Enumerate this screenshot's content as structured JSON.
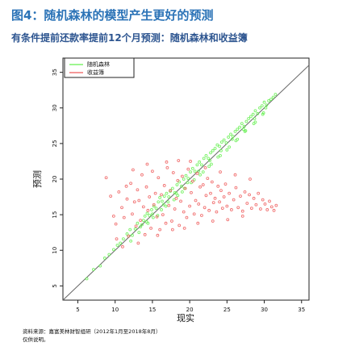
{
  "page": {
    "title": "图4：随机森林的模型产生更好的预测",
    "subtitle": "有条件提前还款率提前12个月预测：随机森林和收益簿",
    "source": "资料来源：嘉富美林财智组研（2012年1月至2018年8月）",
    "note": "仅供说明。"
  },
  "chart_data": {
    "type": "scatter",
    "title": "",
    "xlabel": "现实",
    "ylabel": "预测",
    "xlim": [
      3,
      36
    ],
    "ylim": [
      3,
      37
    ],
    "x_ticks": [
      5,
      10,
      15,
      20,
      25,
      30,
      35
    ],
    "y_ticks": [
      5,
      10,
      15,
      20,
      25,
      30,
      35
    ],
    "grid": false,
    "legend_position": "top-left",
    "reference_line": {
      "type": "y=x",
      "color": "#666666"
    },
    "series": [
      {
        "name": "随机森林",
        "color": "#63f04d",
        "points": [
          [
            6.2,
            6.0
          ],
          [
            7.1,
            7.3
          ],
          [
            8.0,
            7.8
          ],
          [
            8.6,
            8.9
          ],
          [
            9.2,
            9.4
          ],
          [
            9.8,
            10.1
          ],
          [
            10.3,
            10.7
          ],
          [
            10.7,
            11.0
          ],
          [
            11.1,
            11.6
          ],
          [
            11.6,
            12.3
          ],
          [
            12.0,
            12.9
          ],
          [
            12.3,
            12.1
          ],
          [
            12.7,
            13.0
          ],
          [
            13.0,
            13.8
          ],
          [
            13.4,
            13.3
          ],
          [
            13.8,
            14.2
          ],
          [
            14.0,
            14.8
          ],
          [
            14.3,
            15.2
          ],
          [
            14.6,
            14.9
          ],
          [
            14.9,
            15.7
          ],
          [
            15.2,
            16.2
          ],
          [
            15.5,
            15.9
          ],
          [
            15.8,
            16.8
          ],
          [
            16.0,
            17.4
          ],
          [
            16.3,
            16.9
          ],
          [
            16.6,
            17.6
          ],
          [
            16.9,
            18.0
          ],
          [
            17.2,
            17.5
          ],
          [
            17.4,
            18.3
          ],
          [
            17.7,
            18.7
          ],
          [
            18.0,
            18.1
          ],
          [
            18.3,
            19.2
          ],
          [
            18.6,
            19.6
          ],
          [
            18.9,
            19.0
          ],
          [
            19.2,
            20.0
          ],
          [
            19.5,
            20.5
          ],
          [
            19.8,
            20.1
          ],
          [
            20.1,
            21.0
          ],
          [
            20.4,
            21.5
          ],
          [
            20.7,
            21.1
          ],
          [
            21.0,
            22.0
          ],
          [
            21.3,
            22.4
          ],
          [
            21.6,
            22.0
          ],
          [
            21.9,
            22.9
          ],
          [
            22.2,
            23.3
          ],
          [
            22.5,
            22.9
          ],
          [
            22.8,
            23.7
          ],
          [
            23.1,
            24.0
          ],
          [
            23.4,
            24.3
          ],
          [
            23.7,
            24.8
          ],
          [
            24.0,
            24.6
          ],
          [
            24.3,
            25.2
          ],
          [
            24.6,
            25.5
          ],
          [
            24.9,
            25.1
          ],
          [
            25.2,
            25.9
          ],
          [
            25.5,
            26.3
          ],
          [
            25.8,
            26.0
          ],
          [
            26.1,
            26.7
          ],
          [
            26.4,
            27.0
          ],
          [
            26.7,
            27.3
          ],
          [
            27.0,
            27.8
          ],
          [
            27.3,
            27.4
          ],
          [
            27.6,
            28.1
          ],
          [
            27.9,
            28.5
          ],
          [
            28.2,
            28.8
          ],
          [
            28.5,
            29.1
          ],
          [
            28.8,
            29.6
          ],
          [
            29.1,
            29.2
          ],
          [
            29.4,
            30.0
          ],
          [
            29.7,
            30.3
          ],
          [
            30.0,
            30.8
          ],
          [
            30.3,
            30.4
          ],
          [
            30.6,
            31.0
          ],
          [
            30.9,
            31.2
          ],
          [
            31.2,
            31.5
          ],
          [
            31.5,
            31.9
          ],
          [
            12.1,
            11.3
          ],
          [
            13.2,
            12.5
          ],
          [
            14.4,
            13.8
          ],
          [
            15.7,
            14.9
          ],
          [
            16.8,
            16.2
          ],
          [
            17.9,
            17.1
          ],
          [
            19.0,
            18.2
          ],
          [
            20.2,
            19.5
          ],
          [
            21.4,
            20.6
          ],
          [
            22.6,
            21.8
          ],
          [
            23.8,
            23.1
          ],
          [
            25.0,
            24.1
          ],
          [
            26.2,
            25.4
          ],
          [
            27.4,
            26.7
          ],
          [
            28.6,
            27.8
          ],
          [
            29.8,
            29.1
          ],
          [
            11.8,
            12.0
          ],
          [
            13.6,
            13.6
          ],
          [
            15.0,
            15.1
          ],
          [
            16.5,
            16.4
          ],
          [
            18.2,
            18.0
          ],
          [
            19.7,
            19.5
          ],
          [
            21.2,
            21.1
          ],
          [
            22.7,
            22.6
          ],
          [
            24.2,
            24.0
          ],
          [
            25.7,
            25.6
          ],
          [
            27.2,
            27.0
          ],
          [
            28.7,
            28.5
          ],
          [
            30.2,
            30.0
          ],
          [
            14.2,
            14.0
          ],
          [
            15.1,
            14.6
          ],
          [
            16.2,
            15.7
          ],
          [
            17.1,
            16.8
          ],
          [
            18.4,
            17.7
          ],
          [
            19.3,
            18.7
          ],
          [
            20.6,
            19.9
          ],
          [
            21.8,
            21.0
          ],
          [
            22.9,
            22.1
          ],
          [
            24.1,
            23.3
          ],
          [
            25.3,
            24.5
          ],
          [
            26.4,
            25.6
          ],
          [
            27.5,
            26.8
          ],
          [
            28.8,
            28.0
          ],
          [
            29.9,
            29.3
          ]
        ]
      },
      {
        "name": "收益簿",
        "color": "#ef5b5b",
        "points": [
          [
            8.8,
            20.2
          ],
          [
            9.4,
            17.6
          ],
          [
            9.8,
            14.8
          ],
          [
            10.1,
            13.7
          ],
          [
            10.5,
            18.2
          ],
          [
            10.9,
            16.0
          ],
          [
            11.2,
            14.6
          ],
          [
            11.6,
            17.2
          ],
          [
            11.8,
            12.0
          ],
          [
            12.1,
            19.4
          ],
          [
            12.3,
            15.1
          ],
          [
            12.6,
            16.8
          ],
          [
            12.8,
            13.4
          ],
          [
            13.0,
            18.5
          ],
          [
            13.2,
            17.0
          ],
          [
            13.4,
            14.2
          ],
          [
            13.6,
            20.6
          ],
          [
            13.8,
            16.1
          ],
          [
            14.0,
            12.2
          ],
          [
            14.2,
            18.9
          ],
          [
            14.4,
            15.6
          ],
          [
            14.6,
            17.5
          ],
          [
            14.8,
            13.1
          ],
          [
            15.0,
            21.1
          ],
          [
            15.2,
            16.4
          ],
          [
            15.4,
            18.0
          ],
          [
            15.6,
            14.7
          ],
          [
            15.8,
            20.2
          ],
          [
            16.0,
            12.9
          ],
          [
            16.2,
            17.8
          ],
          [
            16.4,
            15.0
          ],
          [
            16.6,
            19.1
          ],
          [
            16.8,
            13.8
          ],
          [
            17.0,
            21.6
          ],
          [
            17.2,
            16.3
          ],
          [
            17.4,
            18.4
          ],
          [
            17.6,
            14.1
          ],
          [
            17.8,
            20.9
          ],
          [
            18.0,
            15.8
          ],
          [
            18.2,
            17.3
          ],
          [
            18.4,
            19.8
          ],
          [
            18.6,
            13.5
          ],
          [
            18.8,
            16.9
          ],
          [
            19.0,
            20.4
          ],
          [
            19.2,
            15.4
          ],
          [
            19.4,
            18.7
          ],
          [
            19.6,
            14.6
          ],
          [
            19.8,
            21.4
          ],
          [
            20.0,
            16.2
          ],
          [
            20.2,
            18.1
          ],
          [
            20.4,
            19.7
          ],
          [
            20.6,
            15.1
          ],
          [
            20.8,
            17.0
          ],
          [
            21.0,
            20.8
          ],
          [
            21.2,
            16.5
          ],
          [
            21.4,
            18.9
          ],
          [
            21.6,
            14.9
          ],
          [
            21.8,
            19.2
          ],
          [
            22.0,
            16.0
          ],
          [
            22.2,
            17.7
          ],
          [
            22.4,
            20.1
          ],
          [
            22.6,
            15.6
          ],
          [
            22.8,
            18.0
          ],
          [
            23.0,
            19.6
          ],
          [
            23.2,
            16.7
          ],
          [
            23.4,
            17.3
          ],
          [
            23.6,
            15.4
          ],
          [
            23.8,
            19.0
          ],
          [
            24.0,
            16.8
          ],
          [
            24.2,
            18.4
          ],
          [
            24.4,
            15.9
          ],
          [
            24.6,
            17.5
          ],
          [
            24.8,
            19.3
          ],
          [
            25.0,
            16.2
          ],
          [
            25.3,
            18.0
          ],
          [
            25.6,
            15.7
          ],
          [
            25.9,
            17.1
          ],
          [
            26.2,
            18.8
          ],
          [
            26.5,
            16.0
          ],
          [
            26.8,
            17.6
          ],
          [
            27.1,
            15.5
          ],
          [
            27.4,
            18.2
          ],
          [
            27.7,
            16.6
          ],
          [
            28.0,
            17.8
          ],
          [
            28.3,
            15.9
          ],
          [
            28.6,
            17.3
          ],
          [
            28.9,
            16.4
          ],
          [
            29.2,
            18.0
          ],
          [
            29.5,
            15.8
          ],
          [
            29.8,
            17.1
          ],
          [
            30.1,
            16.5
          ],
          [
            30.4,
            15.7
          ],
          [
            30.7,
            16.9
          ],
          [
            31.0,
            16.1
          ],
          [
            31.3,
            15.6
          ],
          [
            31.6,
            16.3
          ],
          [
            10.2,
            11.6
          ],
          [
            11.0,
            10.5
          ],
          [
            11.5,
            19.0
          ],
          [
            12.4,
            21.3
          ],
          [
            13.1,
            11.0
          ],
          [
            14.3,
            22.1
          ],
          [
            15.7,
            12.1
          ],
          [
            16.9,
            22.4
          ],
          [
            17.7,
            12.9
          ],
          [
            18.5,
            22.6
          ],
          [
            19.3,
            13.1
          ],
          [
            20.1,
            22.5
          ],
          [
            21.1,
            13.8
          ],
          [
            22.1,
            21.6
          ],
          [
            23.1,
            14.1
          ],
          [
            24.1,
            21.0
          ],
          [
            25.1,
            14.3
          ],
          [
            26.1,
            20.6
          ],
          [
            27.1,
            14.8
          ],
          [
            28.1,
            20.0
          ]
        ]
      }
    ]
  }
}
